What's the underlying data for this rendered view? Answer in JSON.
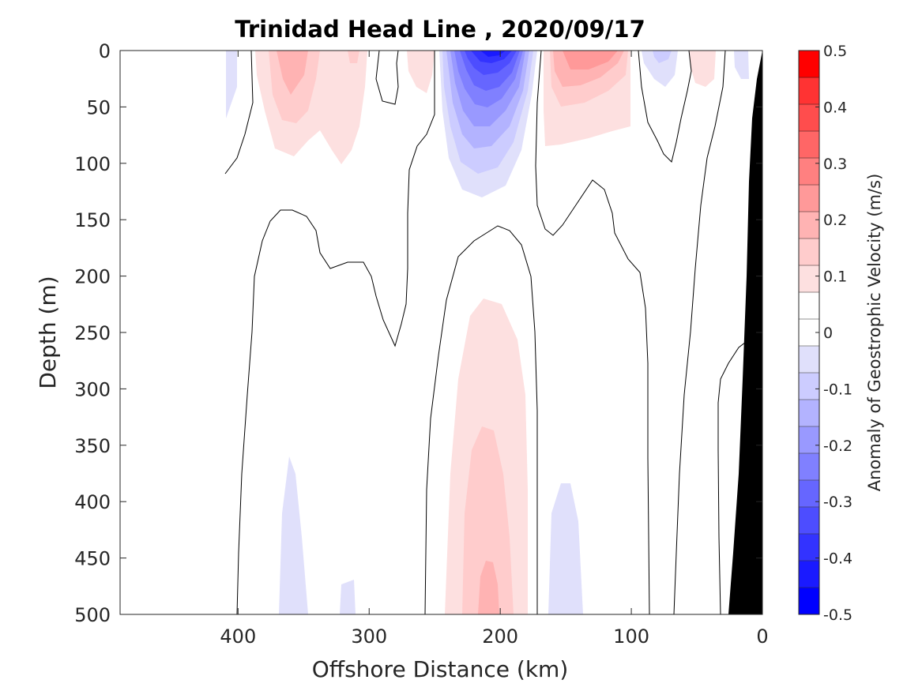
{
  "chart_data": {
    "type": "heatmap",
    "subtype": "filled-contour section",
    "title": "Trinidad Head Line , 2020/09/17",
    "xlabel": "Offshore Distance (km)",
    "ylabel": "Depth (m)",
    "xlim": [
      490,
      0
    ],
    "x_reversed": true,
    "xticks": [
      "400",
      "300",
      "200",
      "100",
      "0"
    ],
    "ylim": [
      0,
      500
    ],
    "y_reversed": true,
    "yticks": [
      "0",
      "50",
      "100",
      "150",
      "200",
      "250",
      "300",
      "350",
      "400",
      "450",
      "500"
    ],
    "colorbar": {
      "label": "Anomaly of Geostrophic Velocity (m/s)",
      "range": [
        -0.5,
        0.5
      ],
      "levels": [
        -0.5,
        -0.45,
        -0.4,
        -0.35,
        -0.3,
        -0.25,
        -0.2,
        -0.15,
        -0.1,
        -0.05,
        0,
        0.05,
        0.1,
        0.15,
        0.2,
        0.25,
        0.3,
        0.35,
        0.4,
        0.45,
        0.5
      ],
      "tick_labels": [
        "0.5",
        "0.4",
        "0.3",
        "0.2",
        "0.1",
        "0",
        "-0.1",
        "-0.2",
        "-0.3",
        "-0.4",
        "-0.5"
      ],
      "colors": [
        "#0000ff",
        "#1a1aff",
        "#3333ff",
        "#4d4dff",
        "#6666ff",
        "#8080ff",
        "#9999ff",
        "#b3b3ff",
        "#ccccff",
        "#e0e0fb",
        "#ffffff",
        "#ffffff",
        "#fde0e0",
        "#ffcccc",
        "#ffb3b3",
        "#ff9999",
        "#ff8080",
        "#ff6666",
        "#ff4d4d",
        "#ff3333",
        "#ff0000"
      ]
    },
    "features": [
      {
        "name": "surface cyclonic core",
        "center_km": 205,
        "depth_m": [
          0,
          130
        ],
        "min_value": -0.45
      },
      {
        "name": "subsurface positive core",
        "center_km": 200,
        "depth_m": [
          220,
          500
        ],
        "max_value": 0.2
      },
      {
        "name": "surface positive band",
        "center_km": 140,
        "depth_m": [
          0,
          85
        ],
        "max_value": 0.25
      },
      {
        "name": "surface positive band",
        "center_km": 355,
        "depth_m": [
          0,
          100
        ],
        "max_value": 0.25
      },
      {
        "name": "deep negative lens",
        "center_km": 150,
        "depth_m": [
          380,
          500
        ],
        "min_value": -0.1
      },
      {
        "name": "deep negative lens",
        "center_km": 355,
        "depth_m": [
          360,
          500
        ],
        "min_value": -0.1
      }
    ],
    "bathymetry_fill": "#000000",
    "contour_line": "zero velocity anomaly"
  }
}
